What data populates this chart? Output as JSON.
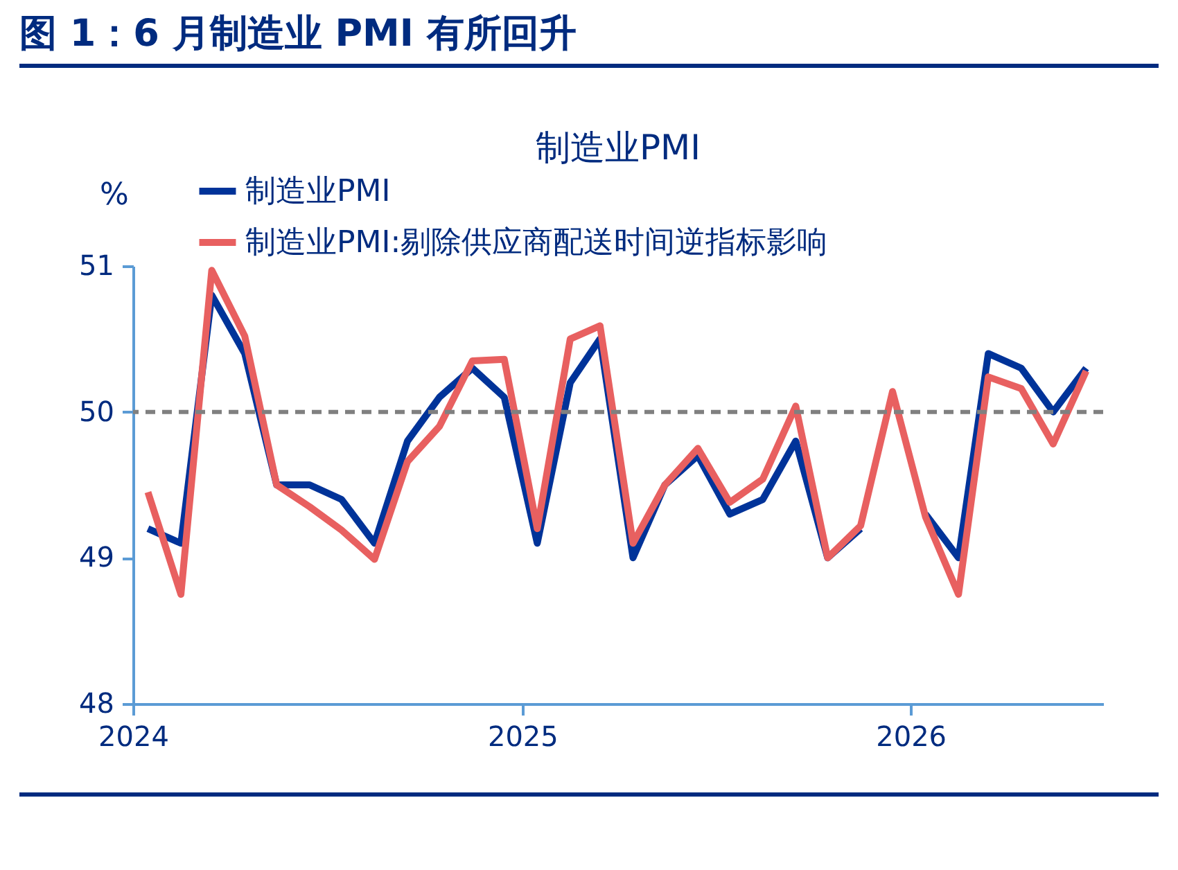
{
  "chart_data": {
    "type": "line",
    "title": "图 1：6 月制造业 PMI 有所回升",
    "subtitle": "制造业PMI",
    "ylabel": "%",
    "x": [
      "2024-01-15",
      "2024-02-15",
      "2024-03-15",
      "2024-04-15",
      "2024-05-15",
      "2024-06-15",
      "2024-07-15",
      "2024-08-15",
      "2024-09-15",
      "2024-10-15",
      "2024-11-15",
      "2024-12-15",
      "2025-01-15",
      "2025-02-15",
      "2025-03-15",
      "2025-04-15",
      "2025-05-15",
      "2025-06-15",
      "2025-07-15",
      "2025-08-15",
      "2025-09-15",
      "2025-10-15",
      "2025-11-15",
      "2025-12-15",
      "2026-01-15",
      "2026-02-15",
      "2026-03-15",
      "2026-04-15",
      "2026-05-15",
      "2026-06-15"
    ],
    "series": [
      {
        "name": "制造业PMI",
        "color": "#003399",
        "values": [
          49.2,
          49.1,
          50.8,
          50.4,
          49.5,
          49.5,
          49.4,
          49.1,
          49.8,
          50.1,
          50.3,
          50.1,
          49.1,
          50.2,
          50.5,
          49.0,
          49.5,
          49.7,
          49.3,
          49.4,
          49.8,
          49.0,
          49.2,
          null,
          49.3,
          49.0,
          50.4,
          50.3,
          50.0,
          50.3
        ]
      },
      {
        "name": "制造业PMI:剔除供应商配送时间逆指标影响",
        "color": "#e86060",
        "values": [
          49.45,
          48.75,
          50.97,
          50.52,
          49.5,
          49.35,
          49.19,
          48.99,
          49.66,
          49.9,
          50.35,
          50.36,
          49.2,
          50.5,
          50.59,
          49.1,
          49.5,
          49.75,
          49.38,
          49.54,
          50.04,
          49.0,
          49.22,
          50.14,
          49.28,
          48.75,
          50.24,
          50.16,
          49.78,
          50.28
        ]
      }
    ],
    "xlim": [
      "2024-01-01",
      "2026-07-01"
    ],
    "xticks": [
      {
        "value": "2024-01-01",
        "label": "2024"
      },
      {
        "value": "2025-01-01",
        "label": "2025"
      },
      {
        "value": "2026-01-01",
        "label": "2026"
      }
    ],
    "ylim": [
      48,
      51
    ],
    "yticks": [
      48,
      49,
      50,
      51
    ],
    "ref_lines": [
      {
        "axis": "y",
        "value": 50,
        "color": "#808080",
        "line_style": "dashed"
      }
    ],
    "legend": "top left",
    "grid": false,
    "marker": "none",
    "line_style": "solid"
  }
}
